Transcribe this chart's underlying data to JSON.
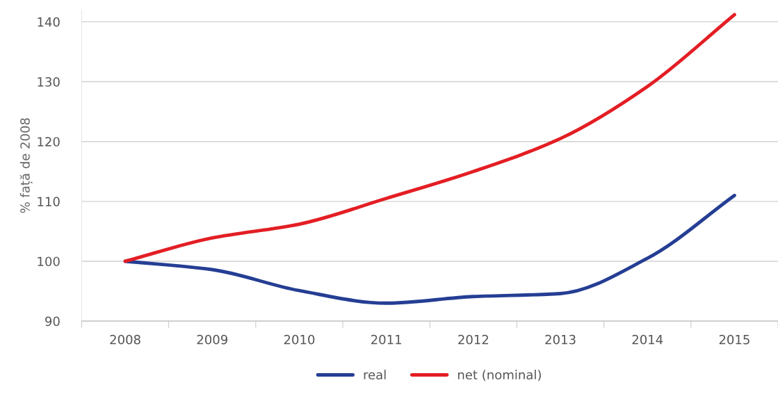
{
  "chart_data": {
    "type": "line",
    "ylabel": "% față de 2008",
    "categories": [
      "2008",
      "2009",
      "2010",
      "2011",
      "2012",
      "2013",
      "2014",
      "2015"
    ],
    "series": [
      {
        "name": "real",
        "color": "#253e94",
        "values": [
          100,
          98.6,
          95.1,
          93.0,
          94.1,
          94.6,
          100.5,
          111
        ]
      },
      {
        "name": "net (nominal)",
        "color": "#e31e24",
        "values": [
          100,
          103.9,
          106.2,
          110.5,
          115,
          120.5,
          129.2,
          141.2
        ]
      }
    ],
    "ylim": [
      90,
      142
    ],
    "yticks": [
      90,
      100,
      110,
      120,
      130,
      140
    ],
    "grid": "y",
    "legend": "bottom",
    "marker": "none",
    "line_style": "solid"
  }
}
